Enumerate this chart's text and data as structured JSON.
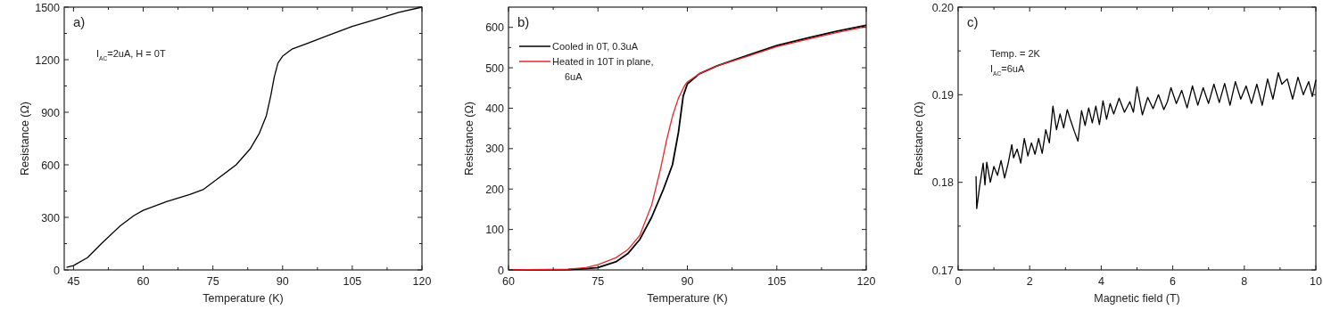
{
  "chart_data": [
    {
      "type": "line",
      "xlabel": "Temperature (K)",
      "ylabel": "Resistance (Ω)",
      "annotations": [
        "a)",
        "I$_{AC}$=2uA, H = 0T"
      ],
      "xlim": [
        43,
        120
      ],
      "xticks": [
        45,
        {
          "value": 52.5,
          "label": null
        },
        60,
        {
          "value": 67.5,
          "label": null
        },
        75,
        {
          "value": 82.5,
          "label": null
        },
        90,
        {
          "value": 97.5,
          "label": null
        },
        105,
        {
          "value": 112.5,
          "label": null
        },
        120
      ],
      "ylim": [
        0,
        1500
      ],
      "yticks": [
        0,
        {
          "value": 150,
          "label": null
        },
        300,
        {
          "value": 450,
          "label": null
        },
        600,
        {
          "value": 750,
          "label": null
        },
        900,
        {
          "value": 1050,
          "label": null
        },
        1200,
        {
          "value": 1350,
          "label": null
        },
        1500
      ],
      "grid": false,
      "legend": false,
      "series": [
        {
          "color": "#000000",
          "x": [
            43.5,
            45,
            48,
            51,
            55,
            58,
            60,
            65,
            70,
            73,
            76,
            80,
            83,
            85,
            86.5,
            87.5,
            88.2,
            89,
            90,
            92,
            95,
            100,
            105,
            110,
            115,
            120
          ],
          "values": [
            15,
            25,
            70,
            150,
            250,
            310,
            340,
            390,
            430,
            460,
            520,
            600,
            690,
            780,
            880,
            1000,
            1100,
            1180,
            1220,
            1260,
            1290,
            1340,
            1390,
            1430,
            1470,
            1500
          ]
        }
      ]
    },
    {
      "type": "line",
      "xlabel": "Temperature (K)",
      "ylabel": "Resistance (Ω)",
      "annotations": [
        "b)"
      ],
      "xlim": [
        60,
        120
      ],
      "xticks": [
        60,
        {
          "value": 67.5,
          "label": null
        },
        75,
        {
          "value": 82.5,
          "label": null
        },
        90,
        {
          "value": 97.5,
          "label": null
        },
        105,
        {
          "value": 112.5,
          "label": null
        },
        120
      ],
      "ylim": [
        0,
        650
      ],
      "yticks": [
        0,
        {
          "value": 50,
          "label": null
        },
        100,
        {
          "value": 150,
          "label": null
        },
        200,
        {
          "value": 250,
          "label": null
        },
        300,
        {
          "value": 350,
          "label": null
        },
        400,
        {
          "value": 450,
          "label": null
        },
        500,
        {
          "value": 550,
          "label": null
        },
        600
      ],
      "grid": false,
      "legend": "top left",
      "series": [
        {
          "name": "Cooled in 0T, 0.3uA",
          "color": "#000000",
          "x": [
            60,
            70,
            73,
            75,
            78,
            80,
            82,
            84,
            86,
            87.5,
            88.5,
            89.3,
            90,
            92,
            95,
            100,
            105,
            110,
            115,
            120
          ],
          "values": [
            0,
            1,
            3,
            6,
            20,
            40,
            75,
            130,
            200,
            260,
            340,
            430,
            460,
            485,
            505,
            530,
            555,
            573,
            590,
            605
          ]
        },
        {
          "name": "Heated in 10T in plane, 6uA",
          "color": "#e8262b",
          "x": [
            60,
            70,
            73,
            75,
            78,
            80,
            82,
            84,
            85.5,
            86.5,
            87.5,
            88.5,
            89.5,
            90,
            92,
            95,
            100,
            105,
            110,
            115,
            120
          ],
          "values": [
            0,
            2,
            6,
            13,
            30,
            50,
            85,
            160,
            250,
            320,
            380,
            425,
            455,
            465,
            485,
            505,
            528,
            552,
            570,
            587,
            602
          ]
        }
      ]
    },
    {
      "type": "line",
      "xlabel": "Magnetic field (T)",
      "ylabel": "Resistance (Ω)",
      "annotations": [
        "c)",
        "Temp. = 2K",
        "I$_{AC}$=6uA"
      ],
      "xlim": [
        0,
        10
      ],
      "xticks": [
        0,
        {
          "value": 1,
          "label": null
        },
        2,
        {
          "value": 3,
          "label": null
        },
        4,
        {
          "value": 5,
          "label": null
        },
        6,
        {
          "value": 7,
          "label": null
        },
        8,
        {
          "value": 9,
          "label": null
        },
        10
      ],
      "ylim": [
        0.17,
        0.2
      ],
      "yticks": [
        {
          "value": 0.17,
          "label": "0.17"
        },
        {
          "value": 0.175,
          "label": null
        },
        {
          "value": 0.18,
          "label": "0.18"
        },
        {
          "value": 0.185,
          "label": null
        },
        {
          "value": 0.19,
          "label": "0.19"
        },
        {
          "value": 0.195,
          "label": null
        },
        {
          "value": 0.2,
          "label": "0.20"
        }
      ],
      "grid": false,
      "legend": false,
      "series": [
        {
          "color": "#000000",
          "x": [
            0.5,
            0.52,
            0.6,
            0.7,
            0.75,
            0.8,
            0.9,
            1.0,
            1.1,
            1.2,
            1.3,
            1.4,
            1.5,
            1.55,
            1.65,
            1.75,
            1.85,
            1.95,
            2.05,
            2.15,
            2.25,
            2.35,
            2.45,
            2.55,
            2.65,
            2.75,
            2.85,
            2.95,
            3.05,
            3.15,
            3.25,
            3.35,
            3.45,
            3.55,
            3.65,
            3.75,
            3.85,
            3.95,
            4.05,
            4.15,
            4.25,
            4.35,
            4.5,
            4.65,
            4.8,
            4.9,
            5.0,
            5.15,
            5.3,
            5.45,
            5.6,
            5.75,
            5.85,
            5.95,
            6.1,
            6.25,
            6.4,
            6.55,
            6.7,
            6.85,
            7.0,
            7.15,
            7.3,
            7.45,
            7.6,
            7.75,
            7.9,
            8.05,
            8.2,
            8.35,
            8.5,
            8.65,
            8.8,
            8.95,
            9.05,
            9.2,
            9.35,
            9.5,
            9.65,
            9.8,
            9.9,
            10.0
          ],
          "values": [
            0.1807,
            0.177,
            0.1795,
            0.1822,
            0.1797,
            0.1823,
            0.18,
            0.1818,
            0.1808,
            0.1825,
            0.1805,
            0.1822,
            0.1843,
            0.1828,
            0.1838,
            0.1822,
            0.185,
            0.183,
            0.1845,
            0.1832,
            0.185,
            0.1833,
            0.186,
            0.1845,
            0.1887,
            0.186,
            0.1878,
            0.1862,
            0.1883,
            0.187,
            0.1858,
            0.1847,
            0.1882,
            0.1865,
            0.1885,
            0.1868,
            0.1887,
            0.1866,
            0.1893,
            0.1872,
            0.189,
            0.1878,
            0.1896,
            0.188,
            0.1892,
            0.188,
            0.1909,
            0.1877,
            0.1897,
            0.1884,
            0.19,
            0.1883,
            0.1892,
            0.1908,
            0.189,
            0.1905,
            0.1885,
            0.191,
            0.1888,
            0.1908,
            0.189,
            0.1912,
            0.1891,
            0.1913,
            0.1888,
            0.1915,
            0.1895,
            0.191,
            0.189,
            0.1912,
            0.1888,
            0.1918,
            0.1895,
            0.1925,
            0.1912,
            0.1918,
            0.1895,
            0.192,
            0.19,
            0.1915,
            0.1898,
            0.1917
          ]
        }
      ]
    }
  ]
}
